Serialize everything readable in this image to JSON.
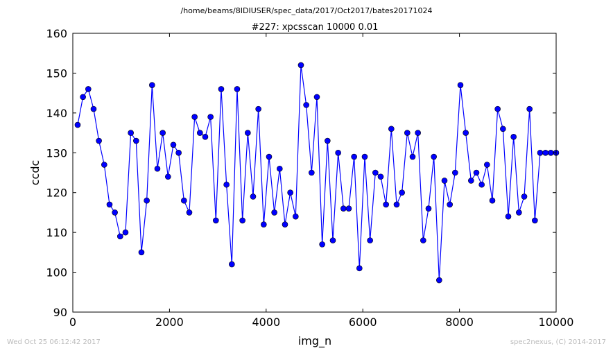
{
  "header": {
    "path": "/home/beams/8IDIUSER/spec_data/2017/Oct2017/bates20171024"
  },
  "footer": {
    "timestamp": "Wed Oct 25 06:12:42 2017",
    "credit": "spec2nexus, (C) 2014-2017"
  },
  "colors": {
    "series": "#0000ff",
    "marker_fill": "#0000ff",
    "marker_edge": "#000000",
    "footer_text": "#bbbbbb"
  },
  "chart_data": {
    "type": "line",
    "title": "#227: xpcsscan 10000 0.01",
    "xlabel": "img_n",
    "ylabel": "ccdc",
    "xlim": [
      0,
      10000
    ],
    "ylim": [
      90,
      160
    ],
    "xticks": [
      0,
      2000,
      4000,
      6000,
      8000,
      10000
    ],
    "yticks": [
      90,
      100,
      110,
      120,
      130,
      140,
      150,
      160
    ],
    "markers": "circle",
    "grid": false,
    "legend": "none",
    "series": [
      {
        "x": [
          100,
          210,
          320,
          430,
          540,
          650,
          760,
          870,
          980,
          1090,
          1200,
          1310,
          1420,
          1530,
          1640,
          1750,
          1860,
          1970,
          2080,
          2190,
          2300,
          2410,
          2520,
          2630,
          2740,
          2850,
          2960,
          3070,
          3180,
          3290,
          3400,
          3510,
          3620,
          3730,
          3840,
          3950,
          4060,
          4170,
          4280,
          4390,
          4500,
          4610,
          4720,
          4830,
          4940,
          5050,
          5160,
          5270,
          5380,
          5490,
          5600,
          5710,
          5820,
          5930,
          6040,
          6150,
          6260,
          6370,
          6480,
          6590,
          6700,
          6810,
          6920,
          7030,
          7140,
          7250,
          7360,
          7470,
          7580,
          7690,
          7800,
          7910,
          8020,
          8130,
          8240,
          8350,
          8460,
          8570,
          8680,
          8790,
          8900,
          9010,
          9120,
          9230,
          9340,
          9450,
          9560,
          9670,
          9780,
          9890,
          10000
        ],
        "y": [
          137,
          144,
          146,
          141,
          133,
          127,
          117,
          115,
          109,
          110,
          135,
          133,
          105,
          118,
          147,
          126,
          135,
          124,
          132,
          130,
          118,
          115,
          139,
          135,
          134,
          139,
          113,
          146,
          122,
          102,
          146,
          113,
          135,
          119,
          141,
          112,
          129,
          115,
          126,
          112,
          120,
          114,
          152,
          142,
          125,
          144,
          107,
          133,
          108,
          130,
          116,
          116,
          129,
          101,
          129,
          108,
          125,
          124,
          117,
          136,
          117,
          120,
          135,
          129,
          135,
          108,
          116,
          129,
          98,
          123,
          117,
          125,
          147,
          135,
          123,
          125,
          122,
          127,
          118,
          141,
          136,
          114,
          134,
          115,
          119,
          141,
          113,
          130,
          130,
          130,
          130
        ]
      }
    ]
  }
}
